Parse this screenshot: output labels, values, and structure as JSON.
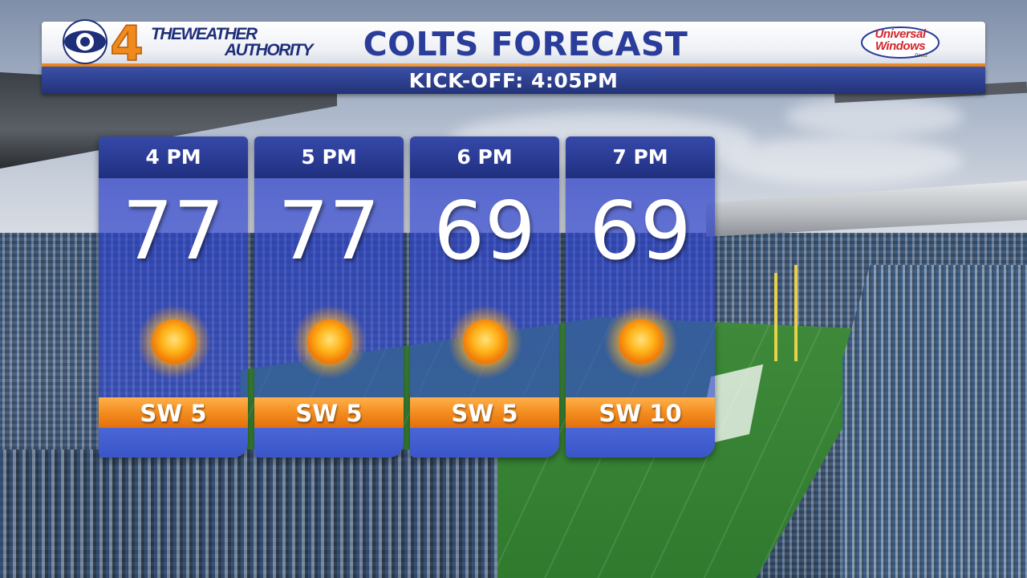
{
  "header": {
    "station": "4",
    "brand_line1": "THEWEATHER",
    "brand_line2": "AUTHORITY",
    "title": "COLTS FORECAST",
    "subtitle": "KICK-OFF: 4:05PM",
    "sponsor_line1": "Universal",
    "sponsor_line2": "Windows",
    "sponsor_line3": "Direct"
  },
  "colors": {
    "header_blue": "#2a3d9a",
    "panel_blue": "#2c40c8",
    "wind_orange": "#f28a1c",
    "accent_orange": "#f08a1e"
  },
  "forecast": [
    {
      "time": "4 PM",
      "temp": "77",
      "icon": "sunny-icon",
      "wind": "SW 5"
    },
    {
      "time": "5 PM",
      "temp": "77",
      "icon": "sunny-icon",
      "wind": "SW 5"
    },
    {
      "time": "6 PM",
      "temp": "69",
      "icon": "sunny-icon",
      "wind": "SW 5"
    },
    {
      "time": "7 PM",
      "temp": "69",
      "icon": "sunny-icon",
      "wind": "SW 10"
    }
  ]
}
